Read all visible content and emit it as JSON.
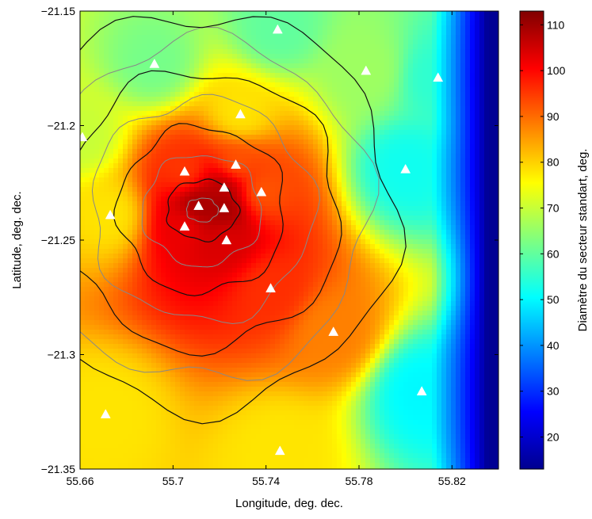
{
  "chart_data": {
    "type": "heatmap",
    "xlabel": "Longitude, deg. dec.",
    "ylabel": "Latitude, deg. dec.",
    "colorbar_label": "Diamètre du secteur standart, deg.",
    "xlim": [
      55.66,
      55.84
    ],
    "ylim": [
      -21.35,
      -21.15
    ],
    "x_ticks": [
      55.66,
      55.7,
      55.74,
      55.78,
      55.82
    ],
    "x_tick_labels": [
      "55.66",
      "55.7",
      "55.74",
      "55.78",
      "55.82"
    ],
    "y_ticks": [
      -21.35,
      -21.3,
      -21.25,
      -21.2,
      -21.15
    ],
    "y_tick_labels": [
      "−21.35",
      "−21.3",
      "−21.25",
      "−21.2",
      "−21.15"
    ],
    "colorbar_range": [
      13,
      113
    ],
    "colorbar_ticks": [
      20,
      30,
      40,
      50,
      60,
      70,
      80,
      90,
      100,
      110
    ],
    "colorbar_tick_labels": [
      "20",
      "30",
      "40",
      "50",
      "60",
      "70",
      "80",
      "90",
      "100",
      "110"
    ],
    "colormap": "jet",
    "stations": [
      {
        "lon": 55.745,
        "lat": -21.158,
        "value": 60
      },
      {
        "lon": 55.692,
        "lat": -21.173,
        "value": 62
      },
      {
        "lon": 55.783,
        "lat": -21.176,
        "value": 66
      },
      {
        "lon": 55.814,
        "lat": -21.179,
        "value": 55
      },
      {
        "lon": 55.729,
        "lat": -21.195,
        "value": 78
      },
      {
        "lon": 55.661,
        "lat": -21.205,
        "value": 70
      },
      {
        "lon": 55.8,
        "lat": -21.219,
        "value": 52
      },
      {
        "lon": 55.727,
        "lat": -21.217,
        "value": 92
      },
      {
        "lon": 55.705,
        "lat": -21.22,
        "value": 95
      },
      {
        "lon": 55.722,
        "lat": -21.227,
        "value": 108
      },
      {
        "lon": 55.738,
        "lat": -21.229,
        "value": 92
      },
      {
        "lon": 55.711,
        "lat": -21.235,
        "value": 110
      },
      {
        "lon": 55.722,
        "lat": -21.236,
        "value": 110
      },
      {
        "lon": 55.673,
        "lat": -21.239,
        "value": 78
      },
      {
        "lon": 55.705,
        "lat": -21.244,
        "value": 102
      },
      {
        "lon": 55.723,
        "lat": -21.25,
        "value": 104
      },
      {
        "lon": 55.742,
        "lat": -21.271,
        "value": 96
      },
      {
        "lon": 55.769,
        "lat": -21.29,
        "value": 88
      },
      {
        "lon": 55.807,
        "lat": -21.316,
        "value": 50
      },
      {
        "lon": 55.671,
        "lat": -21.326,
        "value": 78
      },
      {
        "lon": 55.746,
        "lat": -21.342,
        "value": 78
      }
    ]
  }
}
